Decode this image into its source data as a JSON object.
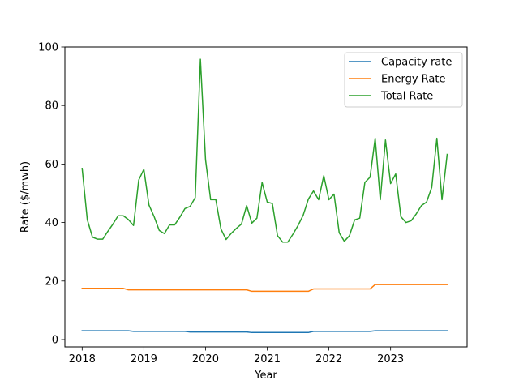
{
  "chart_data": {
    "type": "line",
    "title": "",
    "xlabel": "Year",
    "ylabel": "Rate ($/mwh)",
    "xlim": [
      2017.72,
      2024.24
    ],
    "ylim": [
      -2.5,
      100
    ],
    "x_ticks": [
      2018,
      2019,
      2020,
      2021,
      2022,
      2023
    ],
    "x_tick_labels": [
      "2018",
      "2019",
      "2020",
      "2021",
      "2022",
      "2023"
    ],
    "y_ticks": [
      0,
      20,
      40,
      60,
      80,
      100
    ],
    "y_tick_labels": [
      "0",
      "20",
      "40",
      "60",
      "80",
      "100"
    ],
    "grid": false,
    "legend_position": "top-right",
    "series": [
      {
        "name": "Capacity rate",
        "color": "#1f77b4",
        "x": [
          2018.0,
          2018.75,
          2018.833,
          2019.667,
          2019.75,
          2020.667,
          2020.75,
          2021.667,
          2021.75,
          2022.667,
          2022.75,
          2023.917
        ],
        "y": [
          3.0,
          3.0,
          2.8,
          2.8,
          2.6,
          2.6,
          2.4,
          2.4,
          2.8,
          2.8,
          3.0,
          3.0
        ]
      },
      {
        "name": "Energy Rate",
        "color": "#ff7f0e",
        "x": [
          2018.0,
          2018.667,
          2018.75,
          2020.667,
          2020.75,
          2021.667,
          2021.75,
          2022.667,
          2022.75,
          2023.917
        ],
        "y": [
          17.5,
          17.5,
          17.0,
          17.0,
          16.5,
          16.5,
          17.3,
          17.3,
          18.8,
          18.8
        ]
      },
      {
        "name": "Total Rate",
        "color": "#2ca02c",
        "x": [
          2018.0,
          2018.083,
          2018.167,
          2018.25,
          2018.333,
          2018.417,
          2018.5,
          2018.583,
          2018.667,
          2018.75,
          2018.833,
          2018.917,
          2019.0,
          2019.083,
          2019.167,
          2019.25,
          2019.333,
          2019.417,
          2019.5,
          2019.583,
          2019.667,
          2019.75,
          2019.833,
          2019.917,
          2020.0,
          2020.083,
          2020.167,
          2020.25,
          2020.333,
          2020.417,
          2020.5,
          2020.583,
          2020.667,
          2020.75,
          2020.833,
          2020.917,
          2021.0,
          2021.083,
          2021.167,
          2021.25,
          2021.333,
          2021.417,
          2021.5,
          2021.583,
          2021.667,
          2021.75,
          2021.833,
          2021.917,
          2022.0,
          2022.083,
          2022.167,
          2022.25,
          2022.333,
          2022.417,
          2022.5,
          2022.583,
          2022.667,
          2022.75,
          2022.833,
          2022.917,
          2023.0,
          2023.083,
          2023.167,
          2023.25,
          2023.333,
          2023.417,
          2023.5,
          2023.583,
          2023.667,
          2023.75,
          2023.833,
          2023.917
        ],
        "y": [
          58.5,
          41.0,
          35.0,
          34.3,
          34.3,
          37.0,
          39.5,
          42.3,
          42.3,
          41.0,
          39.0,
          54.5,
          58.2,
          46.0,
          42.0,
          37.3,
          36.2,
          39.2,
          39.2,
          41.8,
          44.8,
          45.5,
          48.5,
          95.8,
          61.5,
          47.8,
          47.8,
          37.8,
          34.2,
          36.3,
          38.0,
          39.5,
          45.8,
          39.8,
          41.5,
          53.7,
          47.0,
          46.5,
          35.5,
          33.3,
          33.3,
          36.0,
          39.0,
          42.5,
          48.0,
          50.8,
          47.8,
          56.0,
          47.8,
          49.7,
          36.5,
          33.6,
          35.5,
          40.9,
          41.5,
          53.7,
          55.5,
          68.8,
          47.8,
          68.2,
          53.3,
          56.6,
          42.0,
          40.0,
          40.6,
          43.0,
          45.8,
          47.0,
          52.0,
          68.8,
          47.8,
          63.3
        ]
      }
    ]
  }
}
